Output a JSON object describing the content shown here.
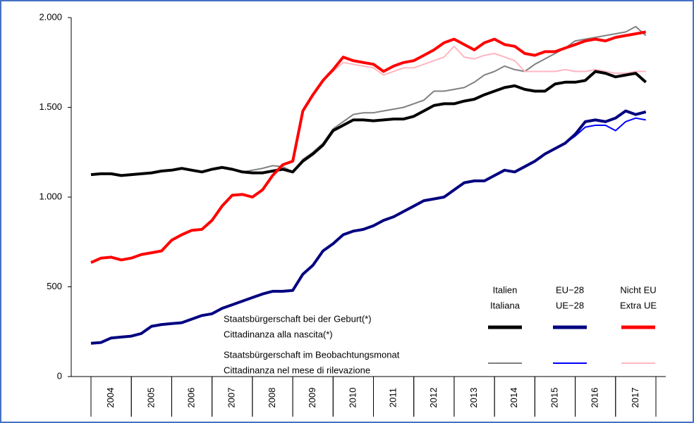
{
  "chart_data": {
    "type": "line",
    "x": [
      2004,
      2004.25,
      2004.5,
      2004.75,
      2005,
      2005.25,
      2005.5,
      2005.75,
      2006,
      2006.25,
      2006.5,
      2006.75,
      2007,
      2007.25,
      2007.5,
      2007.75,
      2008,
      2008.25,
      2008.5,
      2008.75,
      2009,
      2009.25,
      2009.5,
      2009.75,
      2010,
      2010.25,
      2010.5,
      2010.75,
      2011,
      2011.25,
      2011.5,
      2011.75,
      2012,
      2012.25,
      2012.5,
      2012.75,
      2013,
      2013.25,
      2013.5,
      2013.75,
      2014,
      2014.25,
      2014.5,
      2014.75,
      2015,
      2015.25,
      2015.5,
      2015.75,
      2016,
      2016.25,
      2016.5,
      2016.75,
      2017,
      2017.25,
      2017.5,
      2017.75
    ],
    "xlim": [
      2004,
      2018
    ],
    "xticks": [
      {
        "value": 2004.5,
        "label": "2004"
      },
      {
        "value": 2005.5,
        "label": "2005"
      },
      {
        "value": 2006.5,
        "label": "2006"
      },
      {
        "value": 2007.5,
        "label": "2007"
      },
      {
        "value": 2008.5,
        "label": "2008"
      },
      {
        "value": 2009.5,
        "label": "2009"
      },
      {
        "value": 2010.5,
        "label": "2010"
      },
      {
        "value": 2011.5,
        "label": "2011"
      },
      {
        "value": 2012.5,
        "label": "2012"
      },
      {
        "value": 2013.5,
        "label": "2013"
      },
      {
        "value": 2014.5,
        "label": "2014"
      },
      {
        "value": 2015.5,
        "label": "2015"
      },
      {
        "value": 2016.5,
        "label": "2016"
      },
      {
        "value": 2017.5,
        "label": "2017"
      }
    ],
    "ylim": [
      0,
      2000
    ],
    "yticks": [
      0,
      500,
      {
        "value": 1000,
        "label": "1.000"
      },
      {
        "value": 1500,
        "label": "1.500"
      },
      {
        "value": 2000,
        "label": "2.000"
      }
    ],
    "legend": {
      "columns": [
        [
          "Italien",
          "Italiana"
        ],
        [
          "EU−28",
          "UE−28"
        ],
        [
          "Nicht EU",
          "Extra UE"
        ]
      ],
      "rows": [
        [
          "Staatsbürgerschaft bei der Geburt(*)",
          "Cittadinanza alla nascita(*)"
        ],
        [
          "Staatsbürgerschaft im Beobachtungsmonat",
          "Cittadinanza nel mese di rilevazione"
        ]
      ]
    },
    "series": [
      {
        "color": "#000000",
        "values": [
          1125,
          1130,
          1130,
          1120,
          1125,
          1130,
          1135,
          1145,
          1150,
          1160,
          1150,
          1140,
          1155,
          1165,
          1155,
          1140,
          1135,
          1135,
          1145,
          1155,
          1140,
          1200,
          1240,
          1290,
          1370,
          1400,
          1430,
          1430,
          1425,
          1430,
          1435,
          1435,
          1450,
          1480,
          1510,
          1520,
          1520,
          1535,
          1545,
          1570,
          1590,
          1610,
          1620,
          1600,
          1590,
          1590,
          1630,
          1640,
          1640,
          1650,
          1700,
          1690,
          1670,
          1680,
          1690,
          1640
        ]
      },
      {
        "color": "#000080",
        "values": [
          185,
          190,
          215,
          220,
          225,
          240,
          280,
          290,
          295,
          300,
          320,
          340,
          350,
          380,
          400,
          420,
          440,
          460,
          475,
          475,
          480,
          570,
          620,
          700,
          740,
          790,
          810,
          820,
          840,
          870,
          890,
          920,
          950,
          980,
          990,
          1000,
          1040,
          1080,
          1090,
          1090,
          1120,
          1150,
          1140,
          1170,
          1200,
          1240,
          1270,
          1300,
          1350,
          1420,
          1430,
          1420,
          1440,
          1480,
          1460,
          1475
        ]
      },
      {
        "color": "#ff0000",
        "values": [
          635,
          660,
          665,
          650,
          660,
          680,
          690,
          700,
          760,
          790,
          815,
          820,
          870,
          950,
          1010,
          1015,
          1000,
          1040,
          1120,
          1180,
          1200,
          1480,
          1570,
          1650,
          1710,
          1780,
          1760,
          1750,
          1740,
          1700,
          1730,
          1750,
          1760,
          1790,
          1820,
          1860,
          1880,
          1850,
          1820,
          1860,
          1880,
          1850,
          1840,
          1800,
          1790,
          1810,
          1810,
          1830,
          1850,
          1870,
          1880,
          1870,
          1890,
          1900,
          1910,
          1920
        ]
      },
      {
        "color": "#808080",
        "values": [
          1125,
          1130,
          1130,
          1120,
          1125,
          1130,
          1135,
          1145,
          1150,
          1160,
          1150,
          1140,
          1155,
          1165,
          1155,
          1140,
          1150,
          1160,
          1175,
          1170,
          1140,
          1210,
          1250,
          1300,
          1380,
          1420,
          1460,
          1470,
          1470,
          1480,
          1490,
          1500,
          1520,
          1540,
          1590,
          1590,
          1600,
          1610,
          1640,
          1680,
          1700,
          1730,
          1710,
          1700,
          1740,
          1770,
          1800,
          1830,
          1870,
          1880,
          1890,
          1900,
          1910,
          1920,
          1950,
          1900
        ]
      },
      {
        "color": "#0000ff",
        "values": [
          185,
          190,
          215,
          220,
          225,
          240,
          280,
          290,
          295,
          300,
          320,
          340,
          350,
          380,
          400,
          420,
          440,
          460,
          475,
          475,
          480,
          570,
          620,
          700,
          740,
          790,
          810,
          820,
          840,
          870,
          890,
          920,
          950,
          980,
          990,
          1000,
          1040,
          1080,
          1090,
          1090,
          1120,
          1150,
          1140,
          1170,
          1200,
          1240,
          1270,
          1300,
          1340,
          1390,
          1400,
          1400,
          1370,
          1420,
          1440,
          1430
        ]
      },
      {
        "color": "#ffb6c1",
        "values": [
          635,
          660,
          665,
          650,
          660,
          680,
          690,
          700,
          760,
          790,
          815,
          820,
          870,
          950,
          1010,
          1015,
          1000,
          1040,
          1120,
          1180,
          1200,
          1480,
          1570,
          1650,
          1700,
          1750,
          1740,
          1730,
          1720,
          1680,
          1700,
          1720,
          1720,
          1740,
          1760,
          1780,
          1840,
          1780,
          1770,
          1790,
          1800,
          1780,
          1760,
          1700,
          1700,
          1700,
          1700,
          1710,
          1700,
          1700,
          1710,
          1700,
          1690,
          1690,
          1700,
          1700
        ]
      }
    ]
  }
}
